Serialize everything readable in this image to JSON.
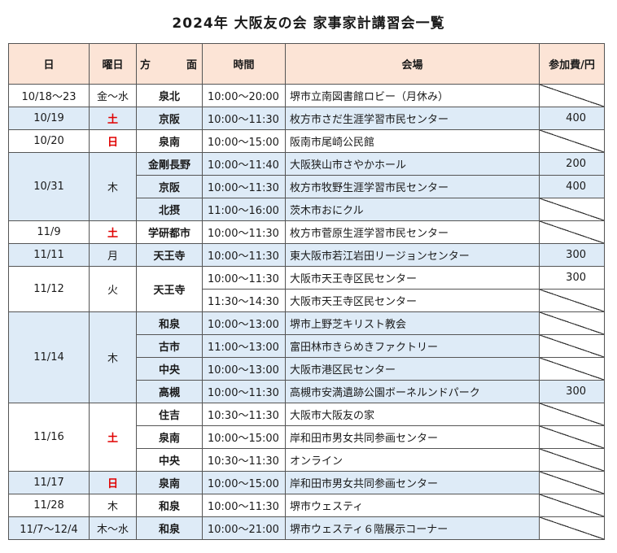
{
  "title": "2024年  大阪友の会  家事家計講習会一覧",
  "headers": {
    "date": "日",
    "weekday": "曜日",
    "area_a": "方",
    "area_b": "面",
    "time": "時間",
    "venue": "会場",
    "fee": "参加費/円"
  },
  "rows": [
    {
      "date": "10/18～23",
      "weekday": "金～水",
      "area": "泉北",
      "time": "10:00～20:00",
      "venue": "堺市立南図書館ロビー（月休み）",
      "fee": ""
    },
    {
      "date": "10/19",
      "weekday": "土",
      "area": "京阪",
      "time": "10:00～11:30",
      "venue": "枚方市さだ生涯学習市民センター",
      "fee": "400"
    },
    {
      "date": "10/20",
      "weekday": "日",
      "area": "泉南",
      "time": "10:00～15:00",
      "venue": "阪南市尾崎公民館",
      "fee": ""
    },
    {
      "date": "10/31",
      "weekday": "木",
      "area": "金剛長野",
      "time": "10:00～11:40",
      "venue": "大阪狭山市さやかホール",
      "fee": "200"
    },
    {
      "date": "",
      "weekday": "",
      "area": "京阪",
      "time": "10:00～11:30",
      "venue": "枚方市牧野生涯学習市民センター",
      "fee": "400"
    },
    {
      "date": "",
      "weekday": "",
      "area": "北摂",
      "time": "11:00～16:00",
      "venue": "茨木市おにクル",
      "fee": ""
    },
    {
      "date": "11/9",
      "weekday": "土",
      "area": "学研都市",
      "time": "10:00～11:30",
      "venue": "枚方市菅原生涯学習市民センター",
      "fee": ""
    },
    {
      "date": "11/11",
      "weekday": "月",
      "area": "天王寺",
      "time": "10:00～11:30",
      "venue": "東大阪市若江岩田リージョンセンター",
      "fee": "300"
    },
    {
      "date": "11/12",
      "weekday": "火",
      "area": "天王寺",
      "time": "10:00～11:30",
      "venue": "大阪市天王寺区民センター",
      "fee": "300"
    },
    {
      "date": "",
      "weekday": "",
      "area": "",
      "time": "11:30～14:30",
      "venue": "大阪市天王寺区民センター",
      "fee": ""
    },
    {
      "date": "11/14",
      "weekday": "木",
      "area": "和泉",
      "time": "10:00～13:00",
      "venue": "堺市上野芝キリスト教会",
      "fee": ""
    },
    {
      "date": "",
      "weekday": "",
      "area": "古市",
      "time": "11:00～13:00",
      "venue": "富田林市きらめきファクトリー",
      "fee": ""
    },
    {
      "date": "",
      "weekday": "",
      "area": "中央",
      "time": "10:00～13:00",
      "venue": "大阪市港区民センター",
      "fee": ""
    },
    {
      "date": "",
      "weekday": "",
      "area": "高槻",
      "time": "10:00～11:30",
      "venue": "高槻市安満遺跡公園ボーネルンドパーク",
      "fee": "300"
    },
    {
      "date": "11/16",
      "weekday": "土",
      "area": "住吉",
      "time": "10:30～11:30",
      "venue": "大阪市大阪友の家",
      "fee": ""
    },
    {
      "date": "",
      "weekday": "",
      "area": "泉南",
      "time": "10:00～15:00",
      "venue": "岸和田市男女共同参画センター",
      "fee": ""
    },
    {
      "date": "",
      "weekday": "",
      "area": "中央",
      "time": "10:30～11:30",
      "venue": "オンライン",
      "fee": ""
    },
    {
      "date": "11/17",
      "weekday": "日",
      "area": "泉南",
      "time": "10:00～15:00",
      "venue": "岸和田市男女共同参画センター",
      "fee": ""
    },
    {
      "date": "11/28",
      "weekday": "木",
      "area": "和泉",
      "time": "10:00～11:30",
      "venue": "堺市ウェスティ",
      "fee": ""
    },
    {
      "date": "11/7～12/4",
      "weekday": "木～水",
      "area": "和泉",
      "time": "10:00～21:00",
      "venue": "堺市ウェスティ６階展示コーナー",
      "fee": ""
    }
  ]
}
